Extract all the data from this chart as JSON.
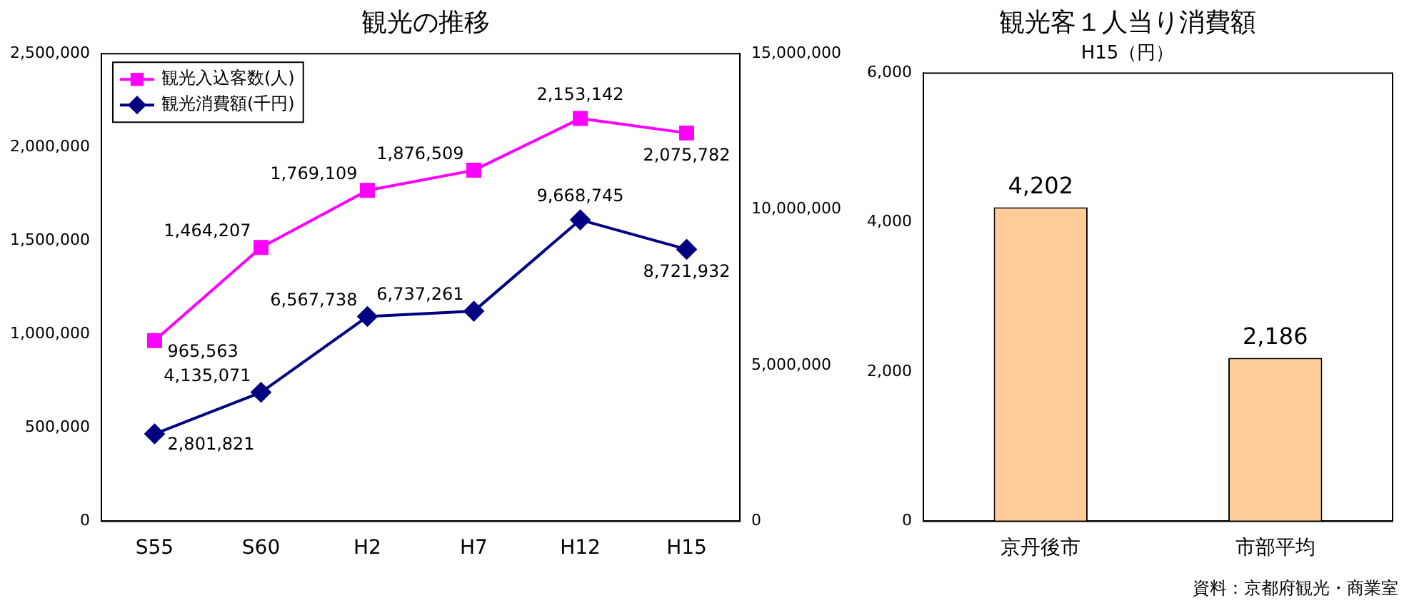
{
  "chart_data": [
    {
      "type": "line",
      "title": "観光の推移",
      "categories": [
        "S55",
        "S60",
        "H2",
        "H7",
        "H12",
        "H15"
      ],
      "series": [
        {
          "name": "観光入込客数(人)",
          "color": "#ff00ff",
          "marker": "square",
          "values": [
            965563,
            1464207,
            1769109,
            1876509,
            2153142,
            2075782
          ],
          "value_labels": [
            "965,563",
            "1,464,207",
            "1,769,109",
            "1,876,509",
            "2,153,142",
            "2,075,782"
          ]
        },
        {
          "name": "観光消費額(千円)",
          "color": "#000080",
          "marker": "diamond",
          "axis": "y2",
          "values": [
            2801821,
            4135071,
            6567738,
            6737261,
            9668745,
            8721932
          ],
          "value_labels": [
            "2,801,821",
            "4,135,071",
            "6,567,738",
            "6,737,261",
            "9,668,745",
            "8,721,932"
          ]
        }
      ],
      "ylim": [
        0,
        2500000
      ],
      "yticks": [
        0,
        {
          "value": 500000,
          "label": "500,000"
        },
        {
          "value": 1000000,
          "label": "1,000,000"
        },
        {
          "value": 1500000,
          "label": "1,500,000"
        },
        {
          "value": 2000000,
          "label": "2,000,000"
        },
        {
          "value": 2500000,
          "label": "2,500,000"
        }
      ],
      "y2lim": [
        0,
        15000000
      ],
      "y2ticks": [
        0,
        {
          "value": 5000000,
          "label": "5,000,000"
        },
        {
          "value": 10000000,
          "label": "10,000,000"
        },
        {
          "value": 15000000,
          "label": "15,000,000"
        }
      ],
      "legend": "top left",
      "grid": false
    },
    {
      "type": "bar",
      "title": "観光客１人当り消費額",
      "subtitle": "H15（円）",
      "categories": [
        "京丹後市",
        "市部平均"
      ],
      "values": [
        4202,
        2186
      ],
      "value_labels": [
        "4,202",
        "2,186"
      ],
      "color": "#ffcc99",
      "ylim": [
        0,
        6000
      ],
      "yticks": [
        0,
        {
          "value": 2000,
          "label": "2,000"
        },
        {
          "value": 4000,
          "label": "4,000"
        },
        {
          "value": 6000,
          "label": "6,000"
        }
      ],
      "grid": false,
      "annotations": [
        "資料：京都府観光・商業室"
      ]
    }
  ]
}
